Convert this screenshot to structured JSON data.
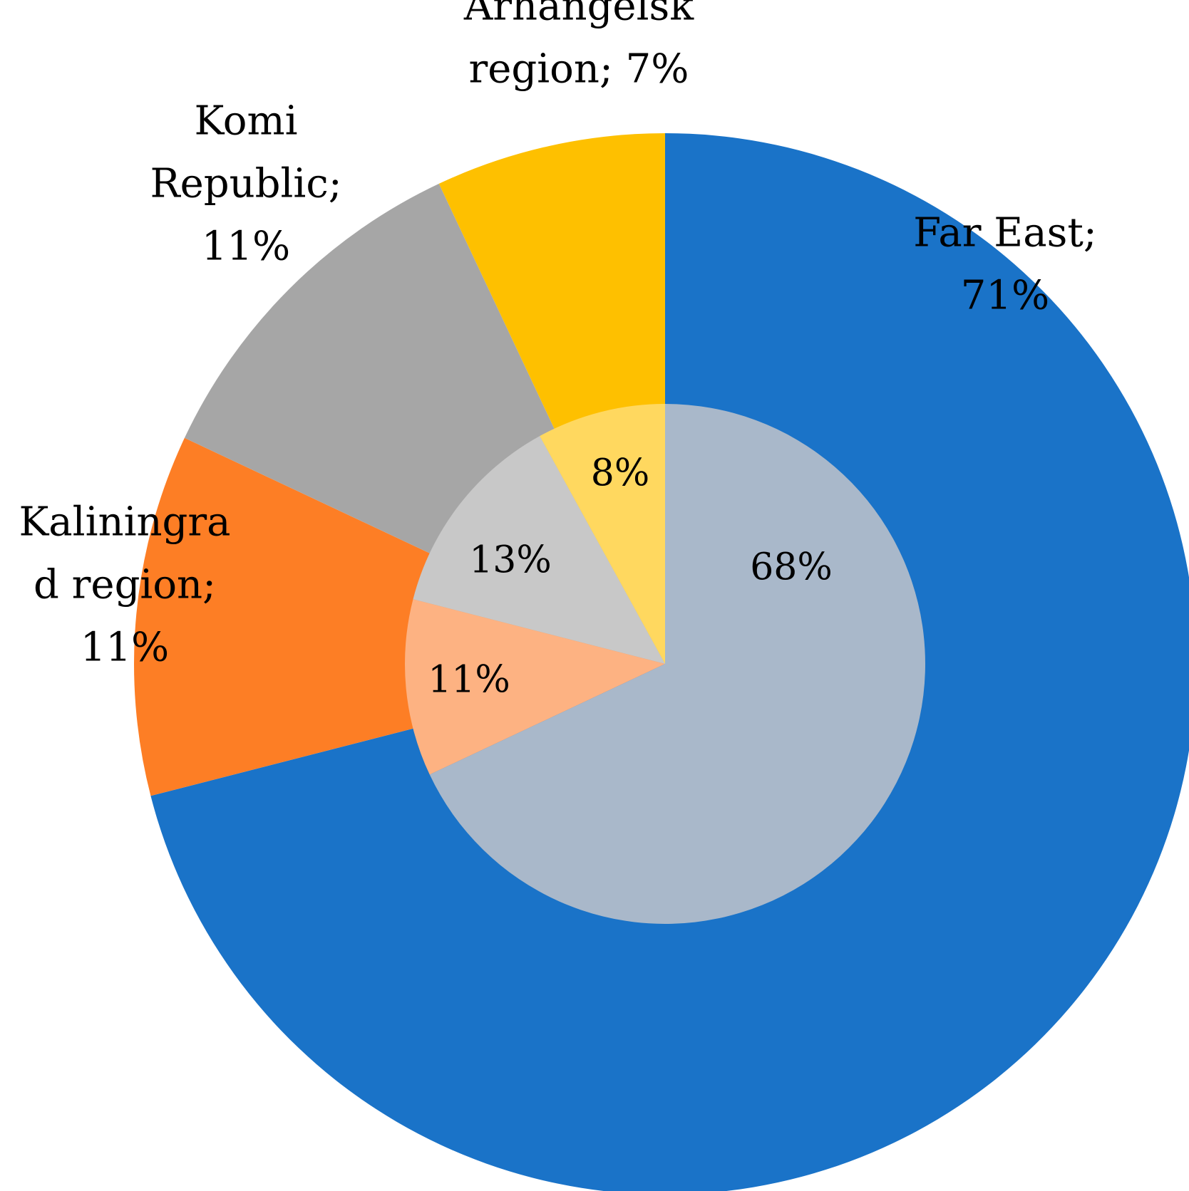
{
  "chart_data": {
    "type": "pie",
    "subtype": "nested-donut",
    "title": "",
    "legend": "none",
    "rings": [
      {
        "ring": "outer",
        "start_angle_deg": 0,
        "direction": "clockwise-from-top",
        "slices": [
          {
            "name": "Far East",
            "value": 71,
            "color": "#1a73c8",
            "label_lines": [
              "Far East;",
              "71%"
            ]
          },
          {
            "name": "Kaliningrad region",
            "value": 11,
            "color": "#fd7e25",
            "label_lines": [
              "Kaliningra",
              "d region;",
              "11%"
            ]
          },
          {
            "name": "Komi Republic",
            "value": 11,
            "color": "#a6a6a6",
            "label_lines": [
              "Komi",
              "Republic;",
              "11%"
            ]
          },
          {
            "name": "Arhangelsk region",
            "value": 7,
            "color": "#fec000",
            "label_lines": [
              "Arhangelsk",
              "region; 7%"
            ]
          }
        ]
      },
      {
        "ring": "inner",
        "start_angle_deg": 0,
        "direction": "clockwise-from-top",
        "slices": [
          {
            "value": 68,
            "color": "#a9b8ca",
            "label": "68%"
          },
          {
            "value": 11,
            "color": "#fdb282",
            "label": "11%"
          },
          {
            "value": 13,
            "color": "#c8c8c8",
            "label": "13%"
          },
          {
            "value": 8,
            "color": "#ffd85f",
            "label": "8%"
          }
        ]
      }
    ]
  }
}
